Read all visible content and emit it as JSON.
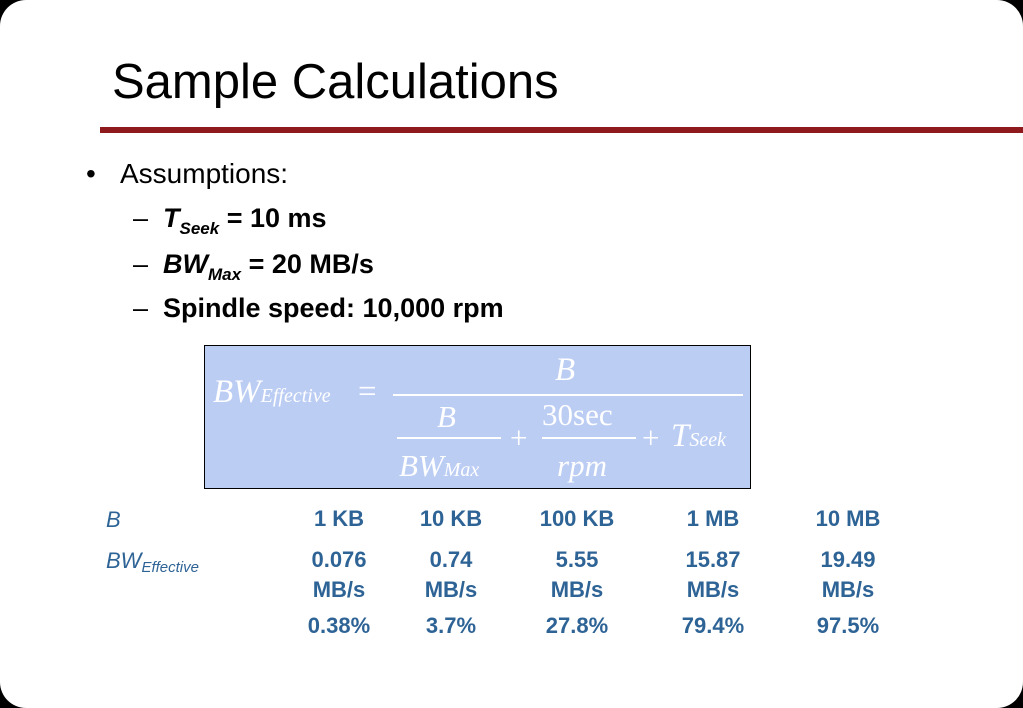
{
  "slide": {
    "title": "Sample Calculations",
    "bullet": "Assumptions:",
    "bullet_marker": "•",
    "dash": "–",
    "assumptions": [
      {
        "var": "T",
        "sub": "Seek",
        "rest": " = 10 ms"
      },
      {
        "var": "BW",
        "sub": "Max",
        "rest": " = 20 MB/s"
      },
      {
        "text": "Spindle speed: 10,000 rpm"
      }
    ]
  },
  "formula": {
    "lhs": "BW",
    "lhs_sub": "Effective",
    "equals": "=",
    "numerator": "B",
    "den_frac1_num": "B",
    "den_frac1_den": "BW",
    "den_frac1_den_sub": "Max",
    "plus1": "+",
    "den_frac2_num": "30sec",
    "den_frac2_den": "rpm",
    "plus2": "+",
    "last": "T",
    "last_sub": "Seek"
  },
  "table": {
    "row1_label": "B",
    "row2_label": "BW",
    "row2_label_sub": "Effective",
    "columns": [
      {
        "b": "1 KB",
        "bw": "0.076",
        "unit": "MB/s",
        "pct": "0.38%"
      },
      {
        "b": "10 KB",
        "bw": "0.74",
        "unit": "MB/s",
        "pct": "3.7%"
      },
      {
        "b": "100 KB",
        "bw": "5.55",
        "unit": "MB/s",
        "pct": "27.8%"
      },
      {
        "b": "1 MB",
        "bw": "15.87",
        "unit": "MB/s",
        "pct": "79.4%"
      },
      {
        "b": "10 MB",
        "bw": "19.49",
        "unit": "MB/s",
        "pct": "97.5%"
      }
    ]
  },
  "colors": {
    "accent_rule": "#8e1a1e",
    "formula_bg": "#bccdf4",
    "table_text": "#2e6396"
  }
}
